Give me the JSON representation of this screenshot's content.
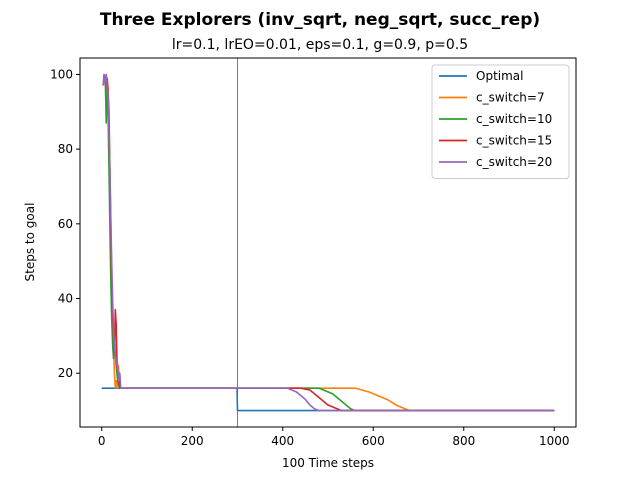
{
  "chart_data": {
    "type": "line",
    "title": "Three Explorers (inv_sqrt, neg_sqrt, succ_rep)",
    "subtitle": "lr=0.1, lrEO=0.01, eps=0.1, g=0.9, p=0.5",
    "xlabel": "100 Time steps",
    "ylabel": "Steps to goal",
    "xlim": [
      -48,
      1048
    ],
    "ylim": [
      5.6,
      104.4
    ],
    "xticks": [
      0,
      200,
      400,
      600,
      800,
      1000
    ],
    "yticks": [
      20,
      40,
      60,
      80,
      100
    ],
    "grid": false,
    "legend_position": "top-right",
    "vline": {
      "x": 300,
      "color": "#d62728"
    },
    "series": [
      {
        "name": "Optimal",
        "color": "#1f77b4",
        "x": [
          0,
          299,
          300,
          1000
        ],
        "y": [
          16,
          16,
          10,
          10
        ]
      },
      {
        "name": "c_switch=7",
        "color": "#ff7f0e",
        "x": [
          5,
          8,
          10,
          12,
          14,
          16,
          18,
          20,
          22,
          24,
          26,
          28,
          30,
          32,
          35,
          37,
          40,
          45,
          50,
          100,
          200,
          299,
          300,
          350,
          500,
          560,
          570,
          580,
          590,
          600,
          610,
          620,
          630,
          640,
          650,
          660,
          670,
          680,
          1000
        ],
        "y": [
          99,
          97,
          99,
          96,
          92,
          82,
          70,
          55,
          45,
          37,
          28,
          20,
          16,
          18,
          16,
          22,
          16,
          16,
          16,
          16,
          16,
          16,
          16,
          16,
          16,
          16,
          15.7,
          15.3,
          15,
          14.5,
          14,
          13.5,
          13,
          12.3,
          11.5,
          11,
          10.5,
          10,
          10
        ]
      },
      {
        "name": "c_switch=10",
        "color": "#2ca02c",
        "x": [
          5,
          8,
          10,
          12,
          14,
          16,
          18,
          20,
          22,
          24,
          26,
          28,
          30,
          35,
          40,
          50,
          299,
          300,
          400,
          440,
          460,
          480,
          490,
          500,
          510,
          520,
          530,
          540,
          550,
          560,
          1000
        ],
        "y": [
          99,
          98,
          87,
          98,
          90,
          75,
          60,
          45,
          35,
          28,
          24,
          30,
          25,
          18,
          16,
          16,
          16,
          16,
          16,
          16,
          16,
          16,
          15.5,
          15,
          14.5,
          13.5,
          12.5,
          11.5,
          10.5,
          10,
          10
        ]
      },
      {
        "name": "c_switch=15",
        "color": "#d62728",
        "x": [
          5,
          8,
          10,
          12,
          14,
          16,
          18,
          20,
          22,
          24,
          26,
          28,
          30,
          32,
          34,
          36,
          38,
          40,
          45,
          50,
          299,
          300,
          400,
          420,
          440,
          460,
          470,
          480,
          490,
          500,
          510,
          520,
          530,
          1000
        ],
        "y": [
          100,
          99,
          97,
          99,
          96,
          90,
          75,
          60,
          45,
          36,
          30,
          25,
          37,
          33,
          22,
          20,
          18,
          16,
          16,
          16,
          16,
          16,
          16,
          16,
          16,
          15.5,
          14.5,
          13.5,
          12.5,
          11.5,
          11,
          10.5,
          10,
          10
        ]
      },
      {
        "name": "c_switch=20",
        "color": "#9467bd",
        "x": [
          3,
          5,
          8,
          10,
          12,
          14,
          16,
          18,
          20,
          22,
          24,
          26,
          28,
          30,
          32,
          34,
          36,
          38,
          40,
          42,
          45,
          50,
          299,
          300,
          410,
          420,
          430,
          440,
          450,
          460,
          470,
          480,
          1000
        ],
        "y": [
          97,
          100,
          98,
          100,
          96,
          95,
          85,
          75,
          62,
          50,
          40,
          32,
          27,
          25,
          22,
          24,
          20,
          18,
          20,
          16,
          16,
          16,
          16,
          16,
          16,
          15.5,
          15,
          14,
          13,
          11.5,
          10.5,
          10,
          10
        ]
      }
    ]
  }
}
